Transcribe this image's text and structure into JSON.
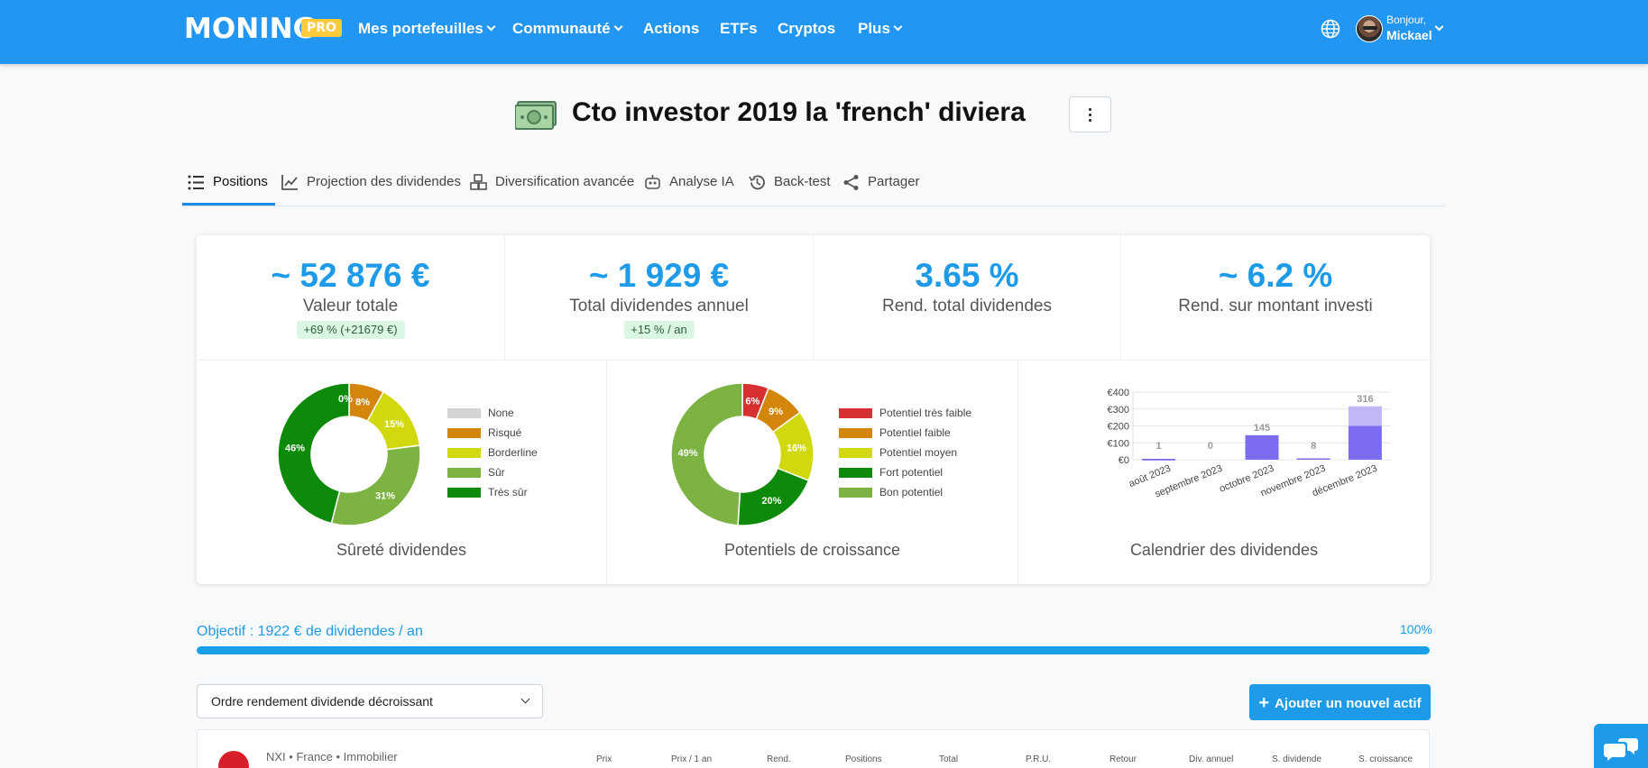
{
  "nav": {
    "logo": "MONING",
    "pro_badge": "PRO",
    "items": [
      {
        "label": "Mes portefeuilles",
        "dropdown": true
      },
      {
        "label": "Communauté",
        "dropdown": true
      },
      {
        "label": "Actions",
        "dropdown": false
      },
      {
        "label": "ETFs",
        "dropdown": false
      },
      {
        "label": "Cryptos",
        "dropdown": false
      },
      {
        "label": "Plus",
        "dropdown": true
      }
    ],
    "greeting": "Bonjour,",
    "user_name": "Mickael"
  },
  "page": {
    "title": "Cto investor 2019 la 'french' diviera"
  },
  "tabs": [
    {
      "label": "Positions",
      "icon": "list-icon",
      "active": true
    },
    {
      "label": "Projection des dividendes",
      "icon": "chart-line-icon"
    },
    {
      "label": "Diversification avancée",
      "icon": "cubes-icon"
    },
    {
      "label": "Analyse IA",
      "icon": "robot-icon"
    },
    {
      "label": "Back-test",
      "icon": "history-icon"
    },
    {
      "label": "Partager",
      "icon": "share-icon"
    }
  ],
  "kpis": [
    {
      "value": "~ 52 876 €",
      "label": "Valeur totale",
      "badge": "+69 % (+21679 €)"
    },
    {
      "value": "~ 1 929 €",
      "label": "Total dividendes annuel",
      "badge": "+15 % / an"
    },
    {
      "value": "3.65 %",
      "label": "Rend. total dividendes"
    },
    {
      "value": "~ 6.2 %",
      "label": "Rend. sur montant investi"
    }
  ],
  "chart_data": [
    {
      "type": "pie",
      "title": "Sûreté dividendes",
      "labels": [
        "None",
        "Risqué",
        "Borderline",
        "Sûr",
        "Très sûr"
      ],
      "values": [
        0,
        8,
        15,
        31,
        46
      ],
      "data_labels": [
        "0%",
        "8%",
        "15%",
        "31%",
        "46%"
      ],
      "colors": [
        "#d4d4d4",
        "#d4860b",
        "#d2d80e",
        "#7cb342",
        "#0e8a0a"
      ],
      "legend": "right"
    },
    {
      "type": "pie",
      "title": "Potentiels de croissance",
      "labels": [
        "Potentiel très faible",
        "Potentiel faible",
        "Potentiel moyen",
        "Fort potentiel",
        "Bon potentiel"
      ],
      "values": [
        6,
        9,
        16,
        20,
        49
      ],
      "data_labels": [
        "6%",
        "9%",
        "16%",
        "20%",
        "49%"
      ],
      "colors": [
        "#d63030",
        "#d4860b",
        "#d2d80e",
        "#0e8a0a",
        "#7cb342"
      ],
      "legend": "right"
    },
    {
      "type": "bar",
      "title": "Calendrier des dividendes",
      "categories": [
        "août 2023",
        "septembre 2023",
        "octobre 2023",
        "novembre 2023",
        "décembre 2023"
      ],
      "series": [
        {
          "values": [
            1,
            0,
            145,
            8,
            200
          ],
          "color": "#7b6cf0"
        },
        {
          "values": [
            0,
            0,
            0,
            0,
            116
          ],
          "color": "#bfb8f5"
        }
      ],
      "totals": [
        1,
        0,
        145,
        8,
        316
      ],
      "yticks": [
        "€0",
        "€100",
        "€200",
        "€300",
        "€400"
      ],
      "ylim": [
        0,
        400
      ],
      "grid": true
    }
  ],
  "objective": {
    "text": "Objectif : 1922 € de dividendes / an",
    "percent_label": "100%",
    "progress": 1.0
  },
  "controls": {
    "sort_value": "Ordre rendement dividende décroissant",
    "add_button": "Ajouter un nouvel actif"
  },
  "positions": {
    "first_row_name": "NXI • France • Immobilier",
    "columns": [
      "Prix",
      "Prix / 1 an",
      "Rend.",
      "Positions",
      "Total",
      "P.R.U.",
      "Retour",
      "Div. annuel",
      "S. dividende",
      "S. croissance"
    ]
  },
  "colors": {
    "nav_bg": "#2196f3",
    "accent": "#1e9be8",
    "pro": "#ffc93c"
  }
}
